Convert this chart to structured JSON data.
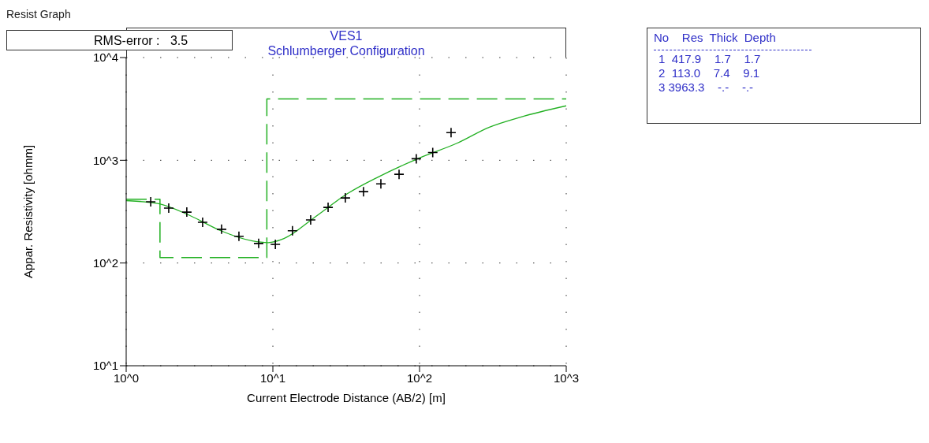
{
  "chart_data": {
    "type": "scatter",
    "title": "VES1",
    "subtitle": "Schlumberger Configuration",
    "xlabel": "Current Electrode Distance (AB/2) [m]",
    "ylabel": "Appar. Resistivity [ohmm]",
    "annotations": [
      "Resist Graph",
      "RMS-error :   3.5",
      "No    Res  Thick  Depth",
      "1  417.9    1.7    1.7",
      "2  113.0    7.4    9.1",
      "3 3963.3    -.-    -.-"
    ],
    "log": "xy",
    "grid": true,
    "legend": false,
    "xlim": [
      1,
      1000
    ],
    "xticks": [
      {
        "value": 1,
        "label": "10^0"
      },
      {
        "value": 10,
        "label": "10^1"
      },
      {
        "value": 100,
        "label": "10^2"
      },
      {
        "value": 1000,
        "label": "10^3"
      }
    ],
    "ylim": [
      10,
      10000
    ],
    "yticks": [
      {
        "value": 10,
        "label": "10^1"
      },
      {
        "value": 100,
        "label": "10^2"
      },
      {
        "value": 1000,
        "label": "10^3"
      },
      {
        "value": 10000,
        "label": "10^4"
      }
    ],
    "series": [
      {
        "color": "#000000",
        "marker": "cross",
        "x": [
          1.47,
          1.95,
          2.59,
          3.32,
          4.47,
          5.87,
          8.0,
          10.4,
          13.6,
          18.1,
          23.8,
          31.2,
          41.5,
          54.5,
          72.5,
          95,
          123,
          164
        ],
        "values": [
          394,
          342,
          313,
          249,
          213,
          182,
          155,
          152,
          206,
          263,
          348,
          430,
          495,
          590,
          730,
          1035,
          1190,
          1860
        ]
      },
      {
        "type": "line",
        "color": "#22b022",
        "line_style": "solid",
        "x": [
          1,
          1.64,
          2.69,
          4.42,
          7.25,
          9.29,
          11.9,
          19.5,
          32,
          52.5,
          100,
          181,
          297,
          488,
          1000
        ],
        "values": [
          405,
          380,
          292,
          206,
          164,
          158,
          173,
          282,
          470,
          690,
          1055,
          1470,
          2090,
          2630,
          3390
        ]
      },
      {
        "type": "step",
        "color": "#22b022",
        "line_style": "dashed",
        "x": [
          1,
          1.7,
          9.1,
          1000
        ],
        "values": [
          417.9,
          113.0,
          3963.3,
          3963.3
        ]
      }
    ]
  }
}
